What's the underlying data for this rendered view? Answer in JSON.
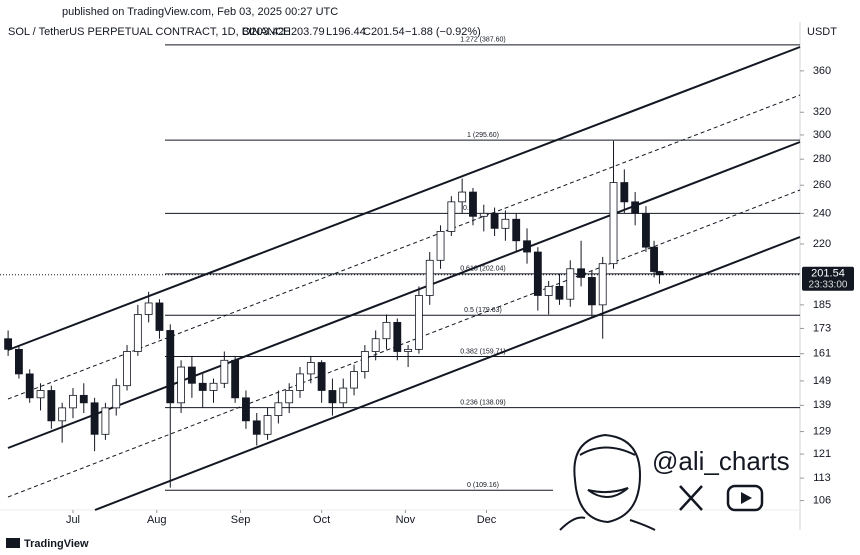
{
  "chart_data": {
    "type": "candlestick",
    "title": "published on TradingView.com, Feb 03, 2025 00:27 UTC",
    "symbol": "SOL / TetherUS PERPETUAL CONTRACT, 1D, BINANCE",
    "ohlc_labels": [
      "O203.42",
      "H203.79",
      "L196.44",
      "C201.54"
    ],
    "change": "−1.88 (−0.92%)",
    "currency": "USDT",
    "last_price": 201.54,
    "countdown": "23:33:00",
    "log_scale": true,
    "ylim": [
      103.2,
      413.7
    ],
    "yticks": [
      106,
      113,
      121,
      129,
      139,
      149,
      161,
      173,
      185,
      220,
      240,
      260,
      280,
      300,
      320,
      360
    ],
    "xlim": [
      3,
      299
    ],
    "xticks": [
      {
        "value": 30,
        "label": "Jul"
      },
      {
        "value": 61,
        "label": "Aug"
      },
      {
        "value": 92,
        "label": "Sep"
      },
      {
        "value": 122,
        "label": "Oct"
      },
      {
        "value": 153,
        "label": "Nov"
      },
      {
        "value": 183,
        "label": "Dec"
      }
    ],
    "up_color": "#ffffff",
    "down_color": "#131722",
    "x": [
      6,
      10,
      14,
      18,
      22,
      26,
      30,
      34,
      38,
      42,
      46,
      50,
      54,
      58,
      62,
      66,
      70,
      74,
      78,
      82,
      86,
      90,
      94,
      98,
      102,
      106,
      110,
      114,
      118,
      122,
      126,
      130,
      134,
      138,
      142,
      146,
      150,
      154,
      158,
      162,
      166,
      170,
      174,
      178,
      182,
      186,
      190,
      194,
      198,
      202,
      206,
      210,
      214,
      218,
      222,
      226,
      230,
      234,
      238,
      242,
      245,
      247
    ],
    "open": [
      168,
      163,
      152,
      142,
      145,
      133,
      138,
      143,
      140,
      128,
      138,
      147,
      162,
      180,
      186,
      172,
      140,
      155,
      148,
      145,
      148,
      158,
      142,
      133,
      128,
      135,
      140,
      145,
      152,
      157,
      145,
      140,
      146,
      153,
      162,
      168,
      176,
      162,
      163,
      190,
      210,
      228,
      248,
      255,
      238,
      240,
      230,
      236,
      222,
      215,
      190,
      195,
      188,
      205,
      200,
      185,
      208,
      262,
      248,
      240,
      218,
      203.42
    ],
    "high": [
      172,
      165,
      154,
      148,
      147,
      140,
      146,
      148,
      142,
      140,
      150,
      165,
      185,
      192,
      188,
      175,
      158,
      160,
      152,
      150,
      162,
      160,
      145,
      136,
      138,
      145,
      148,
      155,
      160,
      158,
      150,
      150,
      156,
      165,
      172,
      180,
      178,
      165,
      195,
      215,
      232,
      252,
      265,
      258,
      246,
      244,
      242,
      240,
      230,
      218,
      198,
      202,
      210,
      222,
      204,
      212,
      295,
      272,
      255,
      245,
      222,
      203.79
    ],
    "low": [
      160,
      150,
      140,
      137,
      130,
      125,
      134,
      136,
      122,
      126,
      135,
      145,
      160,
      176,
      168,
      110,
      136,
      142,
      138,
      140,
      146,
      140,
      130,
      124,
      126,
      132,
      136,
      142,
      148,
      140,
      135,
      138,
      143,
      150,
      158,
      163,
      158,
      155,
      161,
      185,
      205,
      225,
      240,
      232,
      228,
      225,
      222,
      215,
      208,
      182,
      180,
      185,
      184,
      195,
      178,
      168,
      205,
      240,
      232,
      215,
      200,
      196.44
    ],
    "close": [
      163,
      152,
      142,
      145,
      133,
      138,
      143,
      140,
      128,
      138,
      147,
      162,
      180,
      186,
      172,
      140,
      155,
      148,
      145,
      148,
      158,
      142,
      133,
      128,
      135,
      140,
      145,
      152,
      157,
      145,
      140,
      146,
      153,
      162,
      168,
      176,
      162,
      163,
      190,
      210,
      228,
      248,
      255,
      238,
      240,
      230,
      236,
      222,
      215,
      190,
      195,
      188,
      205,
      200,
      185,
      208,
      262,
      248,
      240,
      218,
      203.42,
      201.54
    ],
    "fib_levels": [
      {
        "label": "1.272 (387.60)",
        "value": 387.6
      },
      {
        "label": "1 (295.60)",
        "value": 295.6
      },
      {
        "label": "0.",
        "value": 240
      },
      {
        "label": "0.618 (202.04)",
        "value": 202.04
      },
      {
        "label": "0.5 (179.63)",
        "value": 179.63
      },
      {
        "label": "0.382 (159.71)",
        "value": 159.71
      },
      {
        "label": "0.236 (138.09)",
        "value": 138.09
      },
      {
        "label": "0 (109.16)",
        "value": 109.16
      }
    ],
    "watermark": "@ali_charts",
    "logo": "TradingView"
  }
}
